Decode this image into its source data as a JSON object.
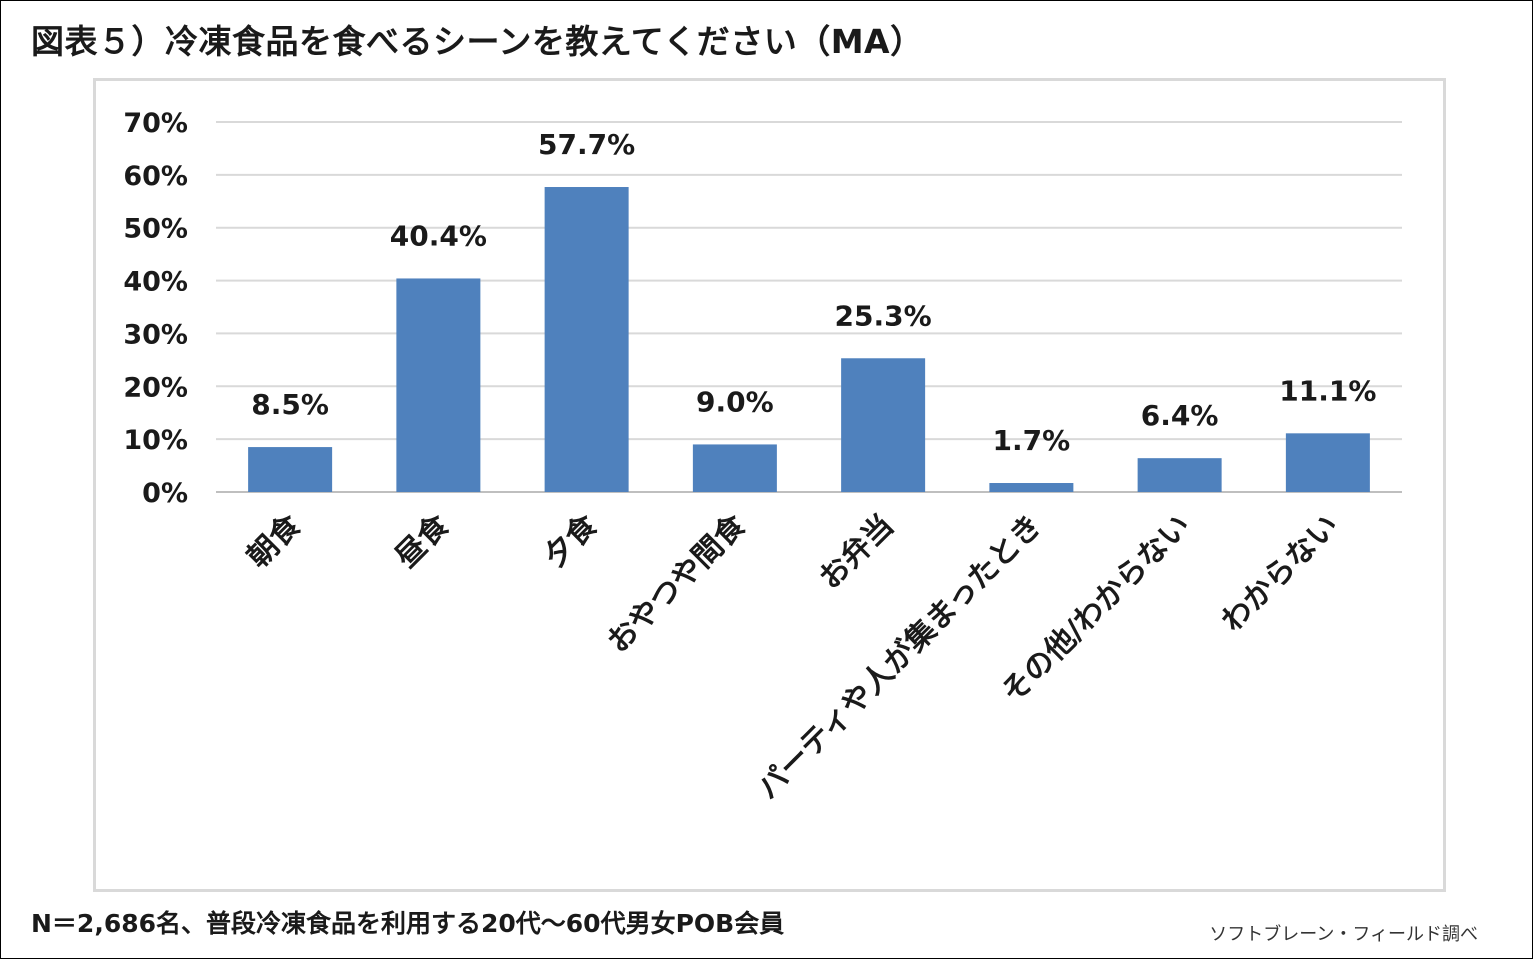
{
  "title": "図表５）冷凍食品を食べるシーンを教えてください（MA）",
  "footnote": "N＝2,686名、普段冷凍食品を利用する20代～60代男女POB会員",
  "credit": "ソフトブレーン・フィールド調べ",
  "colors": {
    "bar": "#4f81bd",
    "grid": "#d9d9d9",
    "axis": "#bfbfbf"
  },
  "chart_data": {
    "type": "bar",
    "title": "",
    "xlabel": "",
    "ylabel": "",
    "ylim": [
      0,
      70
    ],
    "grid": true,
    "categories": [
      "朝食",
      "昼食",
      "夕食",
      "おやつや間食",
      "お弁当",
      "パーティや人が集まったとき",
      "その他/わからない",
      "わからない"
    ],
    "values": [
      8.5,
      40.4,
      57.7,
      9.0,
      25.3,
      1.7,
      6.4,
      11.1
    ],
    "value_labels": [
      "8.5%",
      "40.4%",
      "57.7%",
      "9.0%",
      "25.3%",
      "1.7%",
      "6.4%",
      "11.1%"
    ],
    "yticks": [
      0,
      10,
      20,
      30,
      40,
      50,
      60,
      70
    ],
    "ytick_labels": [
      "0%",
      "10%",
      "20%",
      "30%",
      "40%",
      "50%",
      "60%",
      "70%"
    ]
  }
}
